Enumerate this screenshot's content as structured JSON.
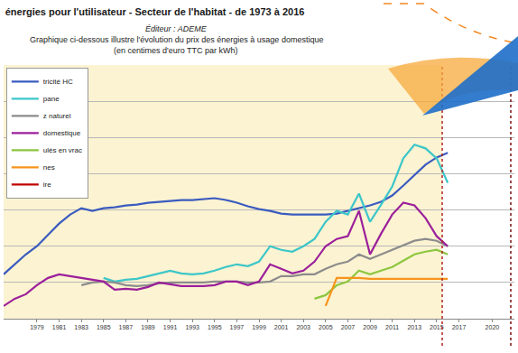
{
  "chart_data": {
    "type": "line",
    "title": "énergies pour l'utilisateur - Secteur de l'habitat - de 1973 à 2016",
    "subtitle": [
      "Éditeur : ADEME",
      "Graphique ci-dessous illustre l'évolution du prix des énergies à usage domestique",
      "(en centimes d'euro TTC par kWh)"
    ],
    "x": [
      1976,
      1977,
      1978,
      1979,
      1980,
      1981,
      1982,
      1983,
      1984,
      1985,
      1986,
      1987,
      1988,
      1989,
      1990,
      1991,
      1992,
      1993,
      1994,
      1995,
      1996,
      1997,
      1998,
      1999,
      2000,
      2001,
      2002,
      2003,
      2004,
      2005,
      2006,
      2007,
      2008,
      2009,
      2010,
      2011,
      2012,
      2013,
      2014,
      2015,
      2016
    ],
    "series": [
      {
        "name": "tricité HC",
        "color": "#3a5bbf",
        "values": [
          4.9,
          6.0,
          7.1,
          8.0,
          9.3,
          10.5,
          11.5,
          12.2,
          11.9,
          12.2,
          12.3,
          12.5,
          12.6,
          12.8,
          12.9,
          13.0,
          13.1,
          13.1,
          13.2,
          13.3,
          13.1,
          12.8,
          12.4,
          12.1,
          11.9,
          11.6,
          11.5,
          11.5,
          11.5,
          11.5,
          11.6,
          11.9,
          12.2,
          12.5,
          12.9,
          13.6,
          14.7,
          15.8,
          17.0,
          17.8,
          18.3
        ]
      },
      {
        "name": "pane",
        "color": "#3cc6c8",
        "values": [
          null,
          null,
          null,
          null,
          null,
          null,
          null,
          null,
          null,
          4.5,
          4.1,
          4.3,
          4.4,
          4.7,
          5.0,
          5.3,
          5.0,
          4.9,
          5.0,
          5.3,
          5.7,
          6.0,
          5.8,
          6.3,
          8.0,
          7.6,
          7.4,
          8.0,
          8.8,
          10.7,
          11.9,
          11.5,
          13.8,
          10.7,
          12.6,
          14.6,
          17.7,
          19.2,
          18.8,
          17.7,
          15.0
        ]
      },
      {
        "name": "z naturel",
        "color": "#8c8c8c",
        "values": [
          null,
          null,
          null,
          null,
          null,
          null,
          null,
          3.7,
          4.0,
          4.1,
          4.0,
          3.7,
          3.6,
          3.7,
          3.9,
          4.0,
          4.0,
          4.0,
          4.0,
          4.1,
          4.1,
          4.1,
          4.0,
          4.0,
          4.1,
          4.7,
          4.7,
          4.9,
          4.9,
          5.5,
          6.0,
          6.3,
          7.1,
          6.6,
          7.1,
          7.6,
          8.1,
          8.6,
          8.8,
          8.6,
          8.0
        ]
      },
      {
        "name": "domestique",
        "color": "#9b1f9b",
        "values": [
          1.4,
          2.2,
          2.7,
          3.7,
          4.5,
          4.9,
          4.7,
          4.5,
          4.3,
          4.1,
          3.2,
          3.3,
          3.2,
          3.5,
          4.0,
          3.8,
          3.6,
          3.6,
          3.6,
          3.7,
          4.1,
          4.1,
          3.7,
          4.1,
          6.0,
          5.5,
          5.0,
          5.3,
          6.3,
          8.0,
          8.8,
          9.1,
          11.9,
          7.1,
          9.4,
          11.5,
          12.8,
          12.5,
          11.1,
          9.1,
          8.0
        ]
      },
      {
        "name": "ulés en vrac",
        "color": "#8dc63f",
        "values": [
          null,
          null,
          null,
          null,
          null,
          null,
          null,
          null,
          null,
          null,
          null,
          null,
          null,
          null,
          null,
          null,
          null,
          null,
          null,
          null,
          null,
          null,
          null,
          null,
          null,
          null,
          null,
          null,
          2.2,
          2.6,
          3.7,
          4.1,
          5.3,
          4.9,
          5.3,
          5.7,
          6.4,
          7.1,
          7.4,
          7.6,
          7.1
        ]
      },
      {
        "name": "nes",
        "color": "#f7941d",
        "values": [
          null,
          null,
          null,
          null,
          null,
          null,
          null,
          null,
          null,
          null,
          null,
          null,
          null,
          null,
          null,
          null,
          null,
          null,
          null,
          null,
          null,
          null,
          null,
          null,
          null,
          null,
          null,
          null,
          null,
          1.4,
          4.5,
          4.5,
          4.5,
          4.4,
          4.4,
          4.4,
          4.4,
          4.4,
          4.4,
          4.4,
          4.4
        ]
      },
      {
        "name": "ire",
        "color": "#c00000",
        "values": [
          null,
          null,
          null,
          null,
          null,
          null,
          null,
          null,
          null,
          null,
          null,
          null,
          null,
          null,
          null,
          null,
          null,
          null,
          null,
          null,
          null,
          null,
          null,
          null,
          null,
          null,
          null,
          null,
          null,
          null,
          null,
          null,
          null,
          null,
          null,
          null,
          null,
          null,
          null,
          null,
          null
        ]
      }
    ],
    "xlim": [
      1976,
      2022
    ],
    "xticks": [
      1979,
      1981,
      1983,
      1985,
      1987,
      1989,
      1991,
      1993,
      1995,
      1997,
      1999,
      2001,
      2003,
      2005,
      2007,
      2009,
      2011,
      2013,
      2015,
      2017,
      2020
    ],
    "ylim": [
      0,
      28
    ],
    "yticks": [
      0,
      4,
      8,
      12,
      16,
      20,
      24,
      28
    ],
    "grid": true,
    "legend": "top-left",
    "tick_labels": "x"
  }
}
